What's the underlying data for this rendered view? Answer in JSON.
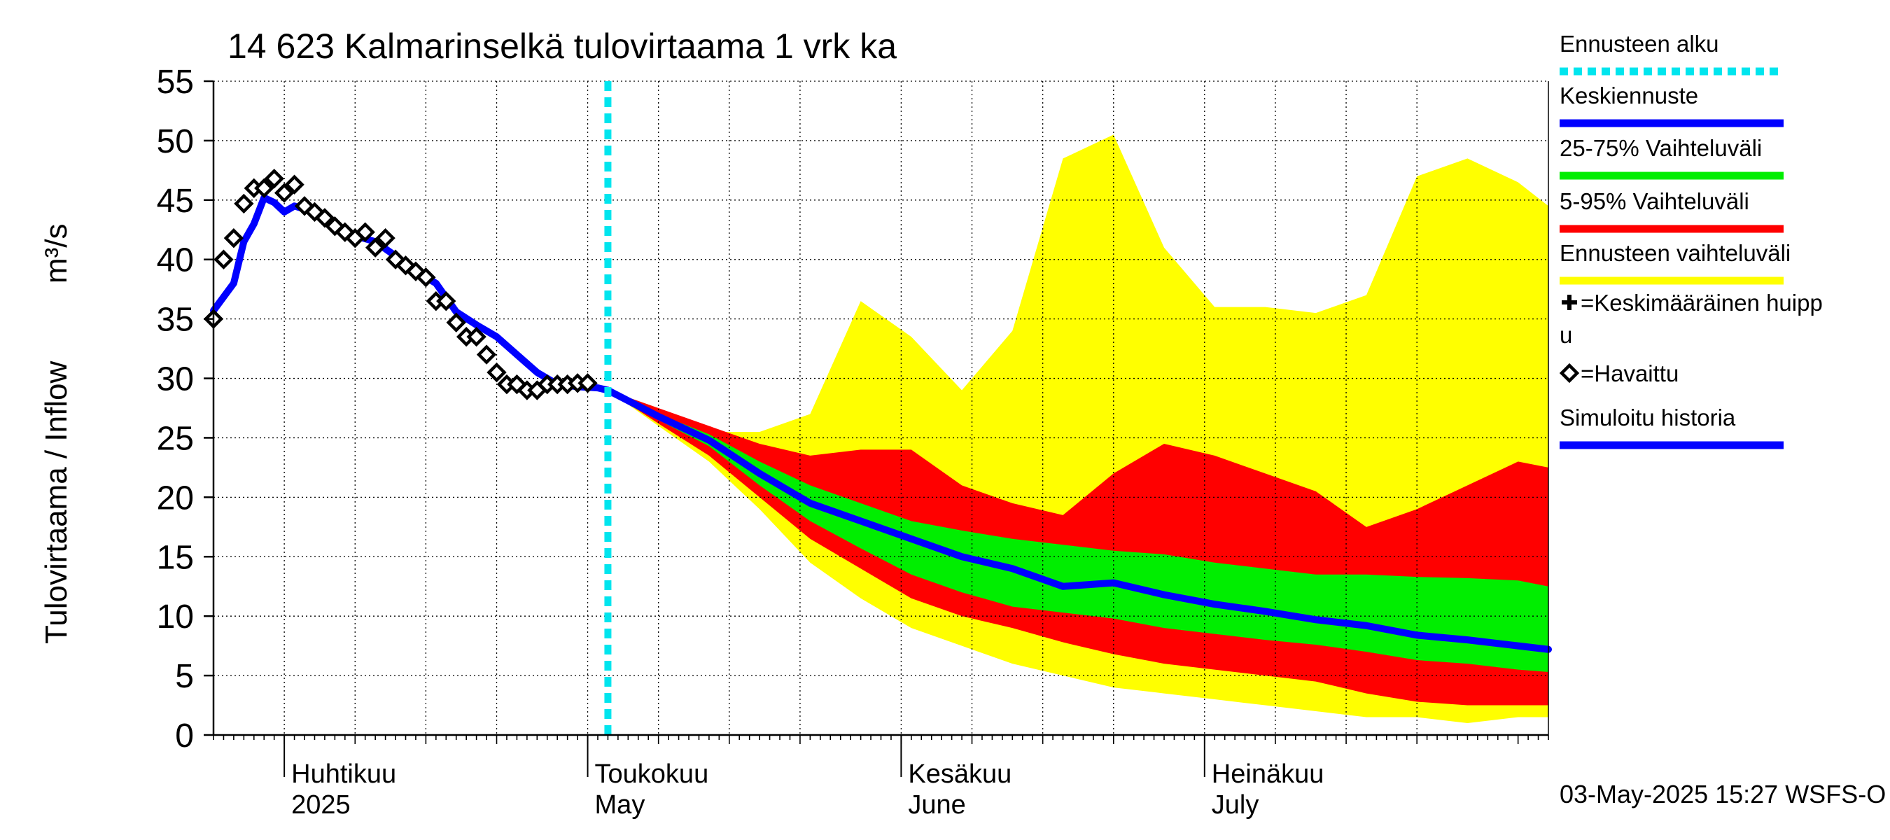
{
  "chart_data": {
    "type": "area",
    "title": "14 623 Kalmarinselkä tulovirtaama 1 vrk ka",
    "ylabel": "Tulovirtaama / Inflow",
    "ylabel_unit": "m³/s",
    "xlabel": "",
    "ylim": [
      0,
      55
    ],
    "xlim": [
      "2025-03-25",
      "2025-08-04"
    ],
    "yticks": [
      0,
      5,
      10,
      15,
      20,
      25,
      30,
      35,
      40,
      45,
      50,
      55
    ],
    "grid": true,
    "legend_position": "right",
    "month_labels": [
      {
        "fi": "Huhtikuu",
        "en": "2025",
        "date": "2025-04-01"
      },
      {
        "fi": "Toukokuu",
        "en": "May",
        "date": "2025-05-01"
      },
      {
        "fi": "Kesäkuu",
        "en": "June",
        "date": "2025-06-01"
      },
      {
        "fi": "Heinäkuu",
        "en": "July",
        "date": "2025-07-01"
      }
    ],
    "forecast_start": "2025-05-03",
    "colors": {
      "forecast_start": "#00e5ee",
      "mean_forecast": "#0000ff",
      "band_25_75": "#00ee00",
      "band_5_95": "#ff0000",
      "band_full": "#ffff00",
      "simulated_history": "#0000ff",
      "observed": "#000000"
    },
    "legend": [
      {
        "label": "Ennusteen alku",
        "kind": "dashed",
        "color": "#00e5ee"
      },
      {
        "label": "Keskiennuste",
        "kind": "line",
        "color": "#0000ff"
      },
      {
        "label": "25-75% Vaihteluväli",
        "kind": "line",
        "color": "#00ee00"
      },
      {
        "label": "5-95% Vaihteluväli",
        "kind": "line",
        "color": "#ff0000"
      },
      {
        "label": "Ennusteen vaihteluväli",
        "kind": "line",
        "color": "#ffff00"
      },
      {
        "label": "=Keskimääräinen huipp\nu",
        "kind": "plus",
        "color": "#000000"
      },
      {
        "label": "=Havaittu",
        "kind": "diamond",
        "color": "#000000"
      },
      {
        "label": "Simuloitu historia",
        "kind": "line",
        "color": "#0000ff"
      }
    ],
    "timestamp": "03-May-2025 15:27 WSFS-O",
    "series": [
      {
        "name": "Havaittu",
        "type": "scatter",
        "x": [
          "2025-03-25",
          "2025-03-26",
          "2025-03-27",
          "2025-03-28",
          "2025-03-29",
          "2025-03-30",
          "2025-03-31",
          "2025-04-01",
          "2025-04-02",
          "2025-04-03",
          "2025-04-04",
          "2025-04-05",
          "2025-04-06",
          "2025-04-07",
          "2025-04-08",
          "2025-04-09",
          "2025-04-10",
          "2025-04-11",
          "2025-04-12",
          "2025-04-13",
          "2025-04-14",
          "2025-04-15",
          "2025-04-16",
          "2025-04-17",
          "2025-04-18",
          "2025-04-19",
          "2025-04-20",
          "2025-04-21",
          "2025-04-22",
          "2025-04-23",
          "2025-04-24",
          "2025-04-25",
          "2025-04-26",
          "2025-04-27",
          "2025-04-28",
          "2025-04-29",
          "2025-04-30",
          "2025-05-01"
        ],
        "y": [
          35.0,
          40.0,
          41.8,
          44.7,
          46.0,
          46.0,
          46.8,
          45.6,
          46.3,
          44.5,
          44.0,
          43.5,
          42.8,
          42.3,
          41.8,
          42.3,
          41.0,
          41.8,
          40.0,
          39.5,
          39.0,
          38.5,
          36.5,
          36.5,
          34.7,
          33.5,
          33.5,
          32.0,
          30.5,
          29.5,
          29.5,
          29.0,
          29.0,
          29.5,
          29.5,
          29.5,
          29.6,
          29.6
        ]
      },
      {
        "name": "Simuloitu historia",
        "type": "line",
        "x": [
          "2025-03-25",
          "2025-03-27",
          "2025-03-28",
          "2025-03-29",
          "2025-03-30",
          "2025-03-31",
          "2025-04-01",
          "2025-04-02",
          "2025-04-04",
          "2025-04-06",
          "2025-04-08",
          "2025-04-10",
          "2025-04-12",
          "2025-04-14",
          "2025-04-16",
          "2025-04-18",
          "2025-04-20",
          "2025-04-22",
          "2025-04-24",
          "2025-04-26",
          "2025-04-28",
          "2025-04-30",
          "2025-05-02",
          "2025-05-03"
        ],
        "y": [
          35.7,
          38.0,
          41.5,
          43.0,
          45.2,
          44.8,
          44.0,
          44.5,
          44.0,
          43.0,
          42.0,
          41.5,
          40.3,
          39.0,
          38.0,
          35.6,
          34.5,
          33.5,
          32.0,
          30.5,
          29.5,
          29.3,
          29.2,
          29.0
        ]
      },
      {
        "name": "Keskiennuste",
        "type": "line",
        "x": [
          "2025-05-03",
          "2025-05-08",
          "2025-05-13",
          "2025-05-18",
          "2025-05-23",
          "2025-05-28",
          "2025-06-02",
          "2025-06-07",
          "2025-06-12",
          "2025-06-17",
          "2025-06-22",
          "2025-06-27",
          "2025-07-02",
          "2025-07-07",
          "2025-07-12",
          "2025-07-17",
          "2025-07-22",
          "2025-07-27",
          "2025-08-01",
          "2025-08-04"
        ],
        "y": [
          29.0,
          26.8,
          24.8,
          22.0,
          19.5,
          18.0,
          16.5,
          15.0,
          14.0,
          12.5,
          12.8,
          11.8,
          11.0,
          10.4,
          9.7,
          9.2,
          8.4,
          8.0,
          7.5,
          7.2
        ]
      },
      {
        "name": "25-75% Vaihteluväli",
        "type": "band",
        "x": [
          "2025-05-03",
          "2025-05-08",
          "2025-05-13",
          "2025-05-18",
          "2025-05-23",
          "2025-05-28",
          "2025-06-02",
          "2025-06-07",
          "2025-06-12",
          "2025-06-17",
          "2025-06-22",
          "2025-06-27",
          "2025-07-02",
          "2025-07-07",
          "2025-07-12",
          "2025-07-17",
          "2025-07-22",
          "2025-07-27",
          "2025-08-01",
          "2025-08-04"
        ],
        "low": [
          29.0,
          26.5,
          24.3,
          21.0,
          18.0,
          15.7,
          13.5,
          12.0,
          10.8,
          10.3,
          9.8,
          9.0,
          8.5,
          8.0,
          7.6,
          7.0,
          6.3,
          6.0,
          5.5,
          5.3
        ],
        "high": [
          29.0,
          27.0,
          25.3,
          23.0,
          21.0,
          19.5,
          18.0,
          17.2,
          16.5,
          16.0,
          15.5,
          15.2,
          14.5,
          14.0,
          13.5,
          13.5,
          13.3,
          13.2,
          13.0,
          12.5
        ]
      },
      {
        "name": "5-95% Vaihteluväli",
        "type": "band",
        "x": [
          "2025-05-03",
          "2025-05-08",
          "2025-05-13",
          "2025-05-18",
          "2025-05-23",
          "2025-05-28",
          "2025-06-02",
          "2025-06-07",
          "2025-06-12",
          "2025-06-17",
          "2025-06-22",
          "2025-06-27",
          "2025-07-02",
          "2025-07-07",
          "2025-07-12",
          "2025-07-17",
          "2025-07-22",
          "2025-07-27",
          "2025-08-01",
          "2025-08-04"
        ],
        "low": [
          29.0,
          26.2,
          23.5,
          20.0,
          16.5,
          14.0,
          11.5,
          10.0,
          9.0,
          7.8,
          6.8,
          6.0,
          5.5,
          5.0,
          4.5,
          3.5,
          2.8,
          2.5,
          2.5,
          2.5
        ],
        "high": [
          29.0,
          27.5,
          26.0,
          24.5,
          23.5,
          24.0,
          24.0,
          21.0,
          19.5,
          18.5,
          22.0,
          24.5,
          23.5,
          22.0,
          20.5,
          17.5,
          19.0,
          21.0,
          23.0,
          22.5
        ]
      },
      {
        "name": "Ennusteen vaihteluväli",
        "type": "band",
        "x": [
          "2025-05-03",
          "2025-05-08",
          "2025-05-13",
          "2025-05-18",
          "2025-05-23",
          "2025-05-28",
          "2025-06-02",
          "2025-06-07",
          "2025-06-12",
          "2025-06-17",
          "2025-06-22",
          "2025-06-27",
          "2025-07-02",
          "2025-07-07",
          "2025-07-12",
          "2025-07-17",
          "2025-07-22",
          "2025-07-27",
          "2025-08-01",
          "2025-08-04"
        ],
        "low": [
          29.0,
          26.0,
          23.0,
          19.0,
          14.5,
          11.5,
          9.0,
          7.5,
          6.0,
          5.0,
          4.0,
          3.5,
          3.0,
          2.5,
          2.0,
          1.5,
          1.5,
          1.0,
          1.5,
          1.5
        ],
        "high": [
          29.0,
          27.5,
          25.5,
          25.5,
          27.0,
          36.5,
          33.5,
          29.0,
          34.0,
          48.5,
          50.5,
          41.0,
          36.0,
          36.0,
          35.5,
          37.0,
          47.0,
          48.5,
          46.5,
          44.5
        ]
      }
    ]
  }
}
